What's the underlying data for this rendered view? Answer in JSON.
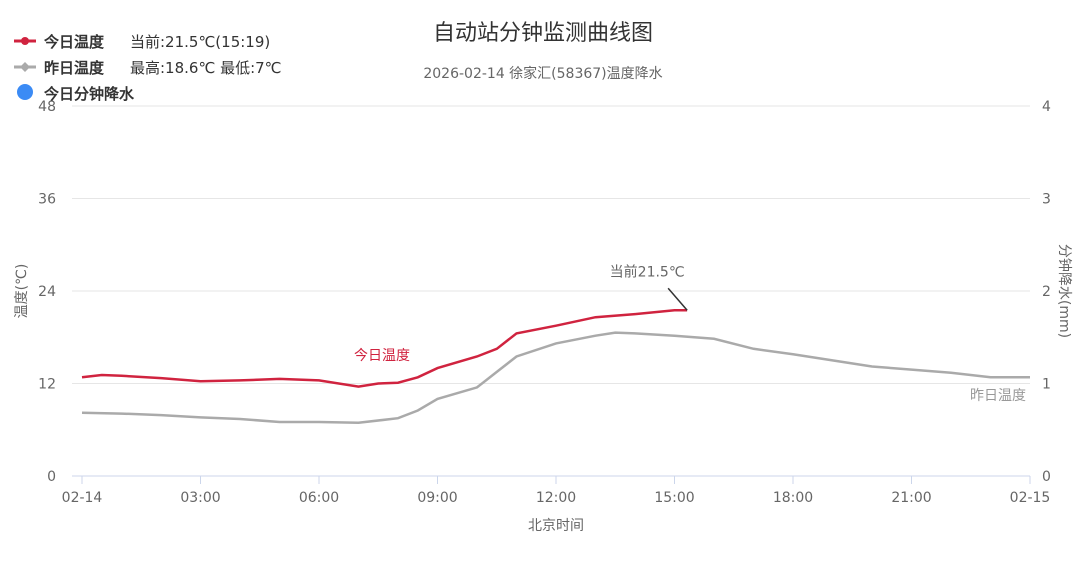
{
  "chart_data": {
    "type": "line",
    "title": "自动站分钟监测曲线图",
    "subtitle": "2026-02-14 徐家汇(58367)温度降水",
    "xlabel": "北京时间",
    "ylabel": "温度(℃)",
    "y2label": "分钟降水(mm)",
    "xticks": [
      "02-14",
      "03:00",
      "06:00",
      "09:00",
      "12:00",
      "15:00",
      "18:00",
      "21:00",
      "02-15"
    ],
    "xrange_hours": [
      0,
      24
    ],
    "ylim": [
      0,
      48
    ],
    "yticks": [
      "0",
      "12",
      "24",
      "36",
      "48"
    ],
    "y2lim": [
      0,
      4
    ],
    "y2ticks": [
      "0",
      "1",
      "2",
      "3",
      "4"
    ],
    "grid": true,
    "legend_position": "top-left",
    "legend": [
      {
        "name": "今日温度",
        "info": "当前:21.5℃(15:19)",
        "color": "#d0233f",
        "marker": "line-dot"
      },
      {
        "name": "昨日温度",
        "info": "最高:18.6℃ 最低:7℃",
        "color": "#aaaaaa",
        "marker": "line-diamond"
      },
      {
        "name": "今日分钟降水",
        "info": "",
        "color": "#3b8bf5",
        "marker": "circle"
      }
    ],
    "series": [
      {
        "name": "今日温度",
        "color": "#d0233f",
        "label": "今日温度",
        "x": [
          0,
          0.5,
          1,
          2,
          3,
          4,
          5,
          6,
          7,
          7.5,
          8,
          8.5,
          9,
          10,
          10.5,
          11,
          12,
          13,
          14,
          15,
          15.32
        ],
        "y": [
          12.8,
          13.1,
          13.0,
          12.7,
          12.3,
          12.4,
          12.6,
          12.4,
          11.6,
          12.0,
          12.1,
          12.8,
          14.0,
          15.5,
          16.5,
          18.5,
          19.5,
          20.6,
          21.0,
          21.5,
          21.5
        ]
      },
      {
        "name": "昨日温度",
        "color": "#aaaaaa",
        "label": "昨日温度",
        "x": [
          0,
          1,
          2,
          3,
          4,
          5,
          6,
          7,
          8,
          8.5,
          9,
          10,
          10.5,
          11,
          12,
          13,
          13.5,
          14,
          15,
          16,
          17,
          18,
          19,
          20,
          21,
          22,
          23,
          24
        ],
        "y": [
          8.2,
          8.1,
          7.9,
          7.6,
          7.4,
          7.0,
          7.0,
          6.9,
          7.5,
          8.5,
          10.0,
          11.5,
          13.5,
          15.5,
          17.2,
          18.2,
          18.6,
          18.5,
          18.2,
          17.8,
          16.5,
          15.8,
          15.0,
          14.2,
          13.8,
          13.4,
          12.8,
          12.8
        ]
      },
      {
        "name": "今日分钟降水",
        "color": "#3b8bf5",
        "x": [],
        "y": []
      }
    ],
    "annotation": "当前21.5℃"
  }
}
